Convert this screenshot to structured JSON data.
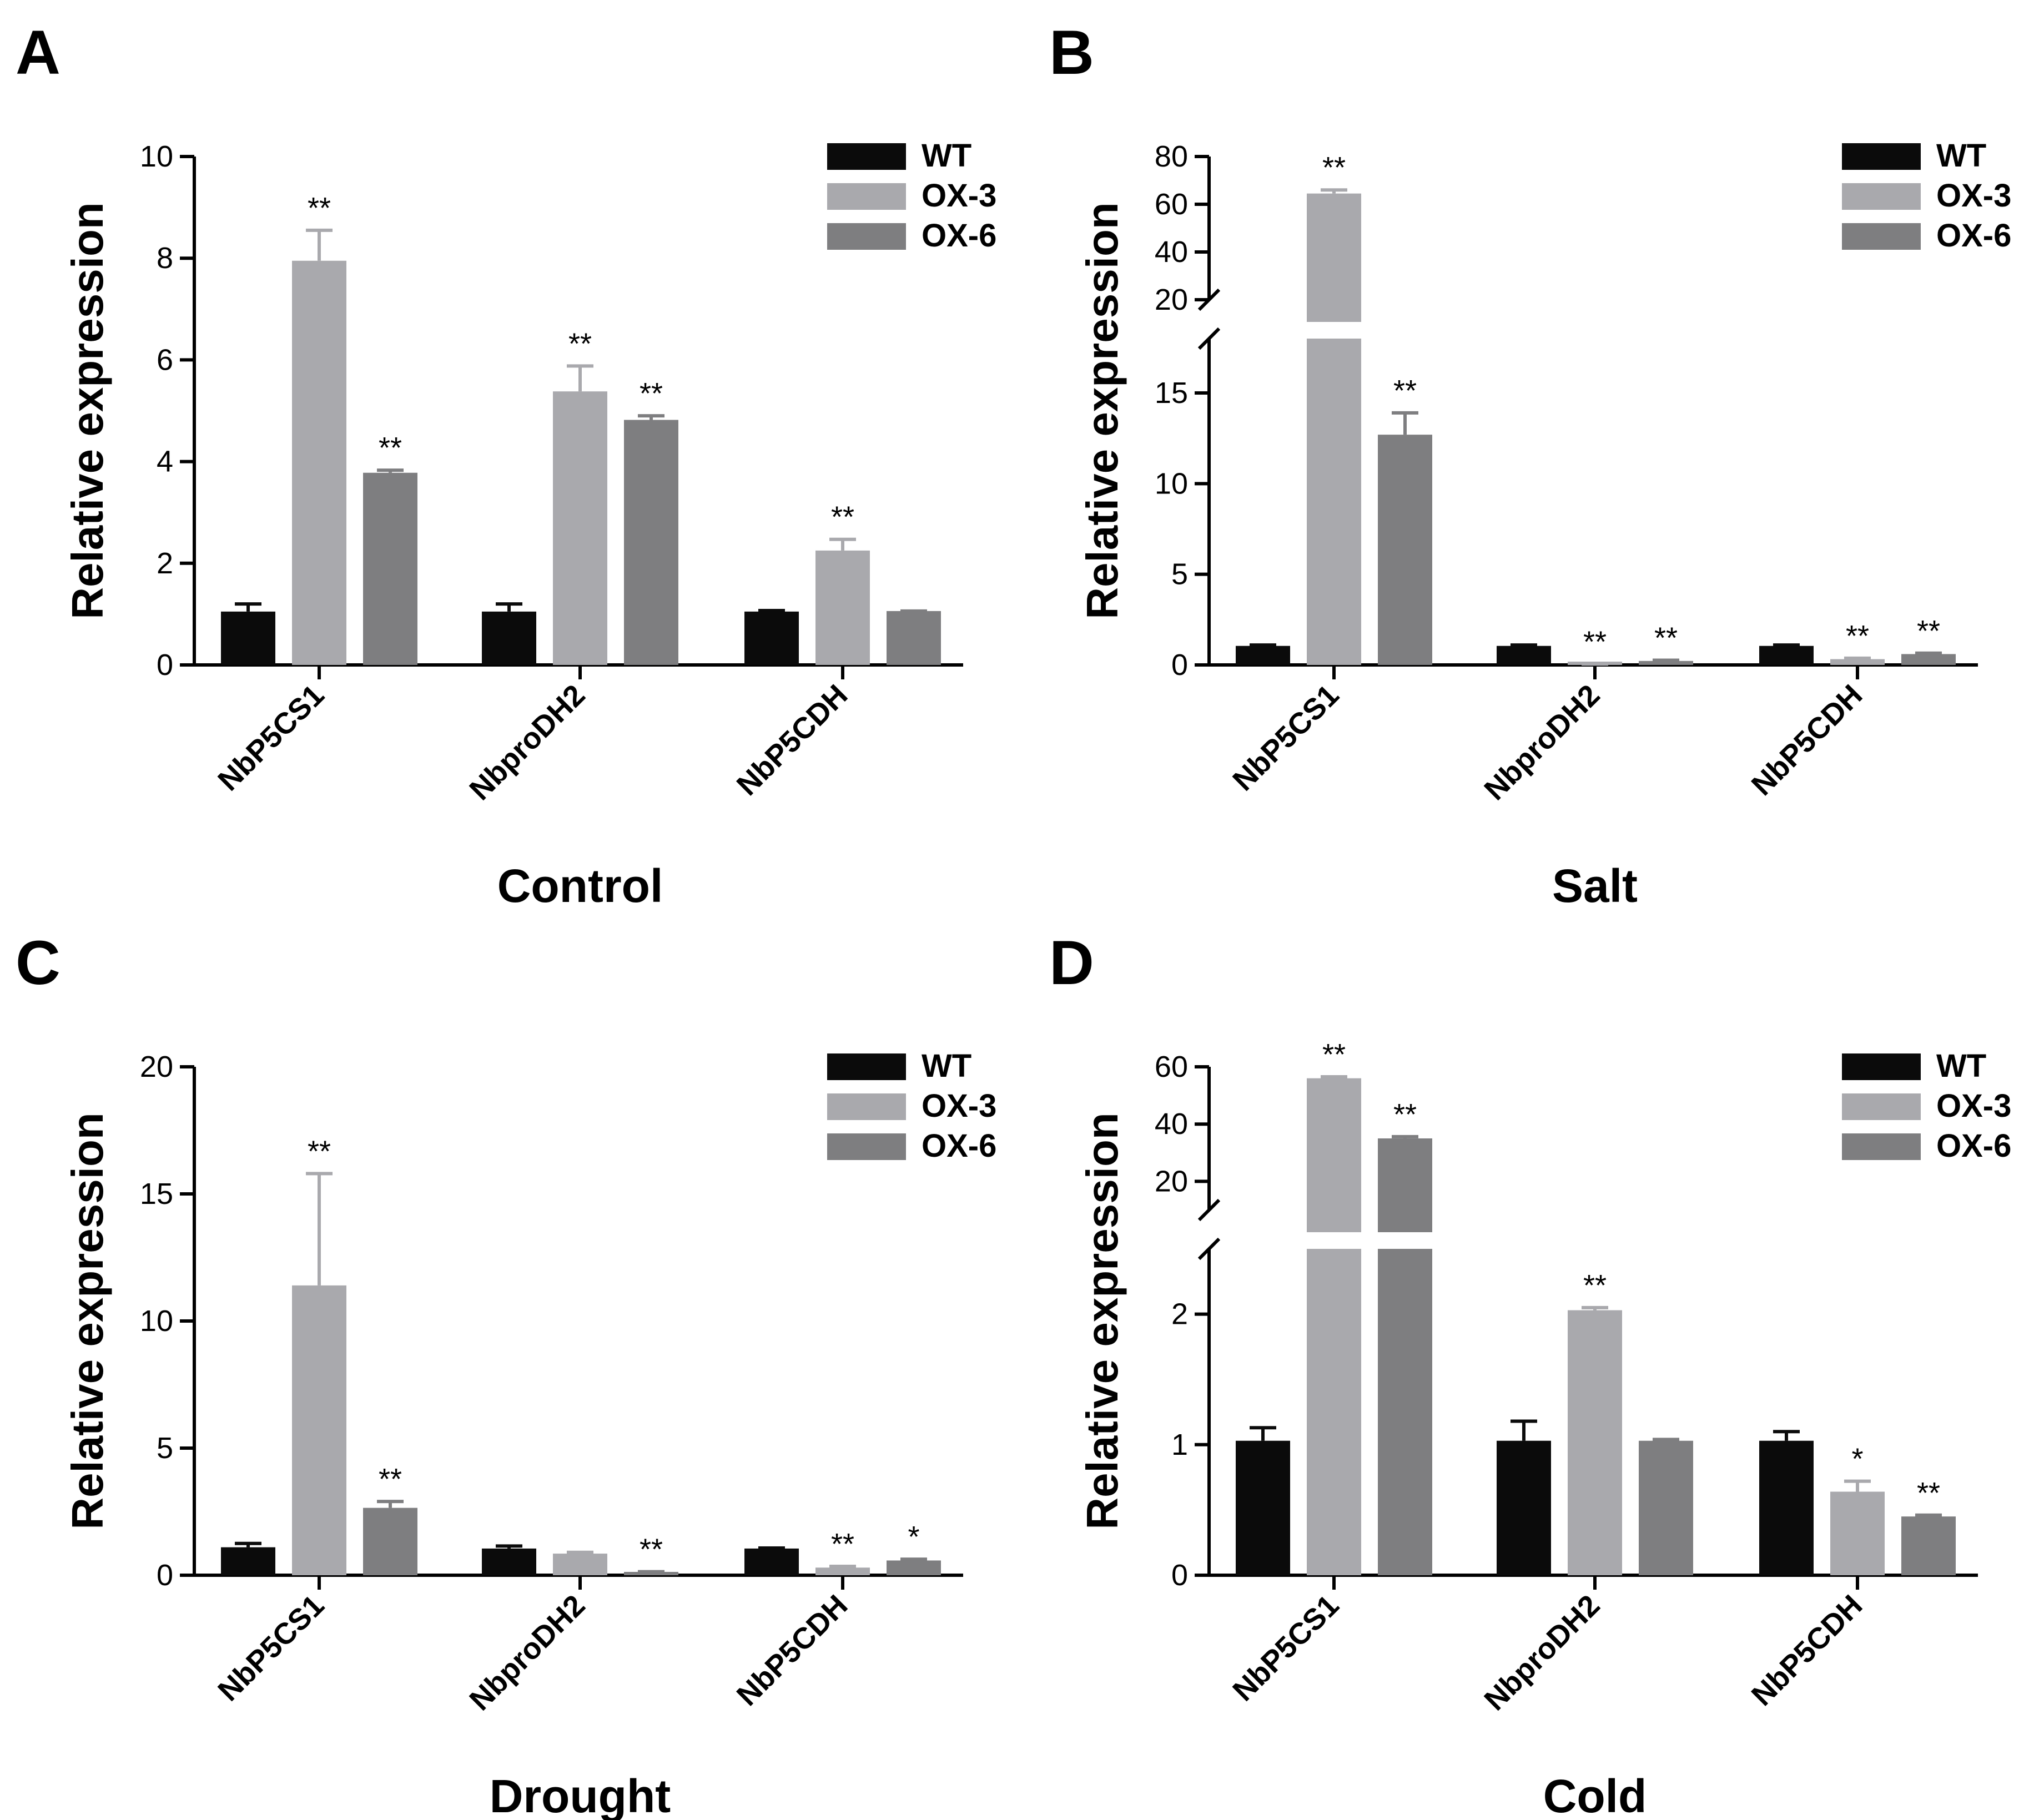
{
  "colors": {
    "WT": "#0b0b0b",
    "OX-3": "#a9a9ad",
    "OX-6": "#7e7e80",
    "axis": "#000000"
  },
  "chart_data": [
    {
      "panel": "A",
      "type": "bar",
      "title": "",
      "xlabel": "Control",
      "ylabel": "Relative expression",
      "categories": [
        "NbP5CS1",
        "NbproDH2",
        "NbP5CDH"
      ],
      "ylim": [
        0,
        10
      ],
      "yticks": [
        0,
        2,
        4,
        6,
        8,
        10
      ],
      "break": null,
      "legend_position": "top-right",
      "series": [
        {
          "name": "WT",
          "values": [
            1.05,
            1.05,
            1.05
          ],
          "errors": [
            0.15,
            0.15,
            0.02
          ],
          "sig": [
            "",
            "",
            ""
          ]
        },
        {
          "name": "OX-3",
          "values": [
            7.95,
            5.38,
            2.25
          ],
          "errors": [
            0.6,
            0.5,
            0.22
          ],
          "sig": [
            "**",
            "**",
            "**"
          ]
        },
        {
          "name": "OX-6",
          "values": [
            3.78,
            4.82,
            1.06
          ],
          "errors": [
            0.05,
            0.08,
            0.0
          ],
          "sig": [
            "**",
            "**",
            ""
          ]
        }
      ]
    },
    {
      "panel": "B",
      "type": "bar",
      "title": "",
      "xlabel": "Salt",
      "ylabel": "Relative expression",
      "categories": [
        "NbP5CS1",
        "NbproDH2",
        "NbP5CDH"
      ],
      "ylim": [
        0,
        80
      ],
      "break": {
        "lower_max": 18,
        "upper_min": 20,
        "upper_max": 80,
        "lower_ticks": [
          0,
          5,
          10,
          15
        ],
        "upper_ticks": [
          20,
          40,
          60,
          80
        ]
      },
      "legend_position": "top-right",
      "series": [
        {
          "name": "WT",
          "values": [
            1.05,
            1.05,
            1.05
          ],
          "errors": [
            0.05,
            0.05,
            0.05
          ],
          "sig": [
            "",
            "",
            ""
          ]
        },
        {
          "name": "OX-3",
          "values": [
            64.5,
            0.05,
            0.32
          ],
          "errors": [
            1.5,
            0.0,
            0.05
          ],
          "sig": [
            "**",
            "**",
            "**"
          ]
        },
        {
          "name": "OX-6",
          "values": [
            12.7,
            0.22,
            0.6
          ],
          "errors": [
            1.2,
            0.04,
            0.05
          ],
          "sig": [
            "**",
            "**",
            "**"
          ]
        }
      ]
    },
    {
      "panel": "C",
      "type": "bar",
      "title": "",
      "xlabel": "Drought",
      "ylabel": "Relative expression",
      "categories": [
        "NbP5CS1",
        "NbproDH2",
        "NbP5CDH"
      ],
      "ylim": [
        0,
        20
      ],
      "yticks": [
        0,
        5,
        10,
        15,
        20
      ],
      "break": null,
      "legend_position": "top-right",
      "series": [
        {
          "name": "WT",
          "values": [
            1.1,
            1.05,
            1.05
          ],
          "errors": [
            0.15,
            0.1,
            0.02
          ],
          "sig": [
            "",
            "",
            ""
          ]
        },
        {
          "name": "OX-3",
          "values": [
            11.4,
            0.85,
            0.3
          ],
          "errors": [
            4.4,
            0.05,
            0.05
          ],
          "sig": [
            "**",
            "",
            "**"
          ]
        },
        {
          "name": "OX-6",
          "values": [
            2.65,
            0.12,
            0.58
          ],
          "errors": [
            0.25,
            0.02,
            0.05
          ],
          "sig": [
            "**",
            "**",
            "*"
          ]
        }
      ]
    },
    {
      "panel": "D",
      "type": "bar",
      "title": "",
      "xlabel": "Cold",
      "ylabel": "Relative expression",
      "categories": [
        "NbP5CS1",
        "NbproDH2",
        "NbP5CDH"
      ],
      "ylim": [
        0,
        60
      ],
      "break": {
        "lower_max": 2.5,
        "upper_min": 10,
        "upper_max": 60,
        "lower_ticks": [
          0,
          1,
          2
        ],
        "upper_ticks": [
          20,
          40,
          60
        ]
      },
      "legend_position": "top-right",
      "series": [
        {
          "name": "WT",
          "values": [
            1.03,
            1.03,
            1.03
          ],
          "errors": [
            0.1,
            0.15,
            0.07
          ],
          "sig": [
            "",
            "",
            ""
          ]
        },
        {
          "name": "OX-3",
          "values": [
            56,
            2.03,
            0.64
          ],
          "errors": [
            0.5,
            0.02,
            0.08
          ],
          "sig": [
            "**",
            "**",
            "*"
          ]
        },
        {
          "name": "OX-6",
          "values": [
            35,
            1.03,
            0.45
          ],
          "errors": [
            0.6,
            0.01,
            0.01
          ],
          "sig": [
            "**",
            "",
            "**"
          ]
        }
      ]
    }
  ]
}
